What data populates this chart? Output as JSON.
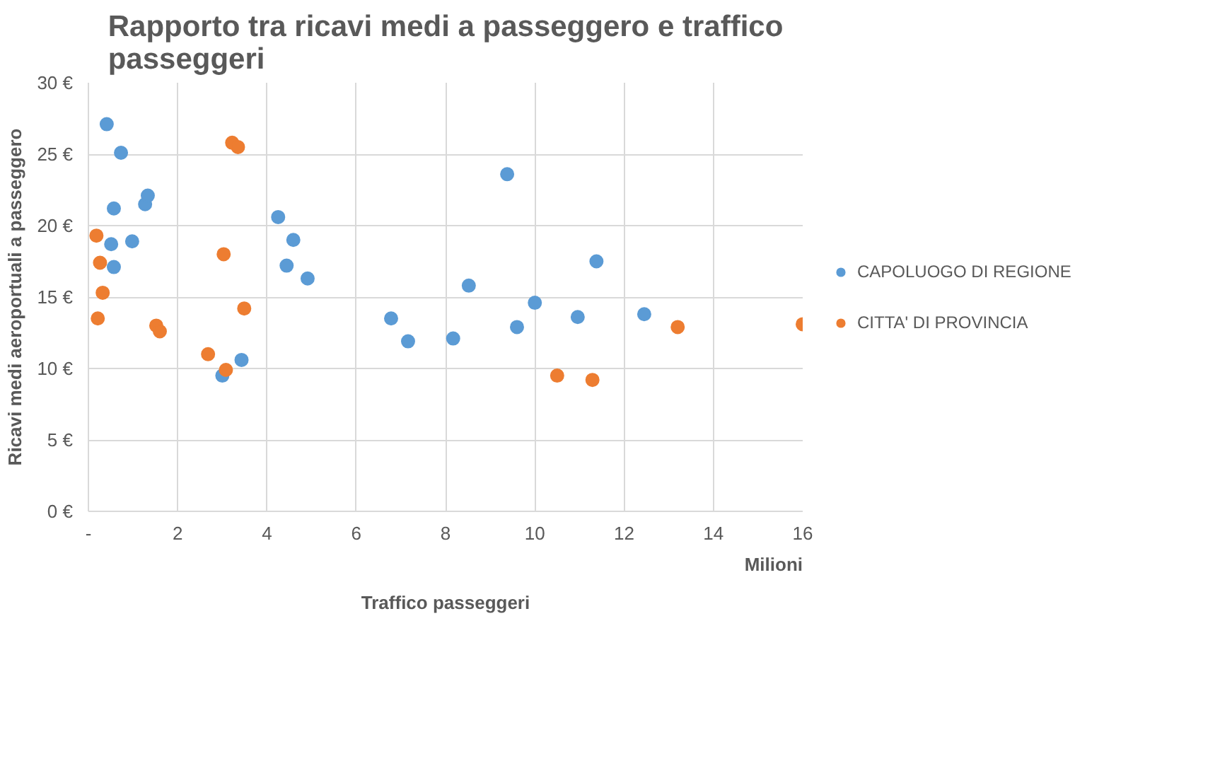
{
  "chart_data": {
    "type": "scatter",
    "title": "Rapporto tra ricavi medi a passeggero e traffico passeggeri",
    "xlabel": "Traffico passeggeri",
    "ylabel": "Ricavi medi aeroportuali a passeggero",
    "annotations": [
      "Milioni"
    ],
    "xlim": [
      0,
      16
    ],
    "ylim": [
      0,
      30
    ],
    "xticks": [
      {
        "value": 0,
        "label": "-"
      },
      2,
      4,
      6,
      8,
      10,
      12,
      14,
      16
    ],
    "yticks": [
      {
        "value": 0,
        "label": "0 €"
      },
      {
        "value": 5,
        "label": "5 €"
      },
      {
        "value": 10,
        "label": "10 €"
      },
      {
        "value": 15,
        "label": "15 €"
      },
      {
        "value": 20,
        "label": "20 €"
      },
      {
        "value": 25,
        "label": "25 €"
      },
      {
        "value": 30,
        "label": "30 €"
      }
    ],
    "grid": true,
    "legend": "right",
    "marker": "circle",
    "series": [
      {
        "name": "CAPOLUOGO DI REGIONE",
        "color": "#5b9bd5",
        "x": [
          0.41,
          0.73,
          0.57,
          1.27,
          1.33,
          0.51,
          0.98,
          0.57,
          4.25,
          4.59,
          4.44,
          4.91,
          6.78,
          7.16,
          8.17,
          8.52,
          9.38,
          9.6,
          10.0,
          10.96,
          11.38,
          12.45,
          3.0,
          3.43
        ],
        "values": [
          27.1,
          25.1,
          21.2,
          21.5,
          22.1,
          18.7,
          18.9,
          17.1,
          20.6,
          19.0,
          17.2,
          16.3,
          13.5,
          11.9,
          12.1,
          15.8,
          23.6,
          12.9,
          14.6,
          13.6,
          17.5,
          13.8,
          9.5,
          10.6
        ]
      },
      {
        "name": "CITTA' DI PROVINCIA",
        "color": "#ed7d31",
        "x": [
          0.18,
          0.26,
          0.32,
          0.21,
          1.52,
          1.6,
          3.22,
          3.35,
          3.03,
          3.49,
          2.68,
          3.08,
          10.5,
          11.29,
          13.2,
          16.0
        ],
        "values": [
          19.3,
          17.4,
          15.3,
          13.5,
          13.0,
          12.6,
          25.8,
          25.5,
          18.0,
          14.2,
          11.0,
          9.9,
          9.5,
          9.2,
          12.9,
          13.1
        ]
      }
    ]
  }
}
